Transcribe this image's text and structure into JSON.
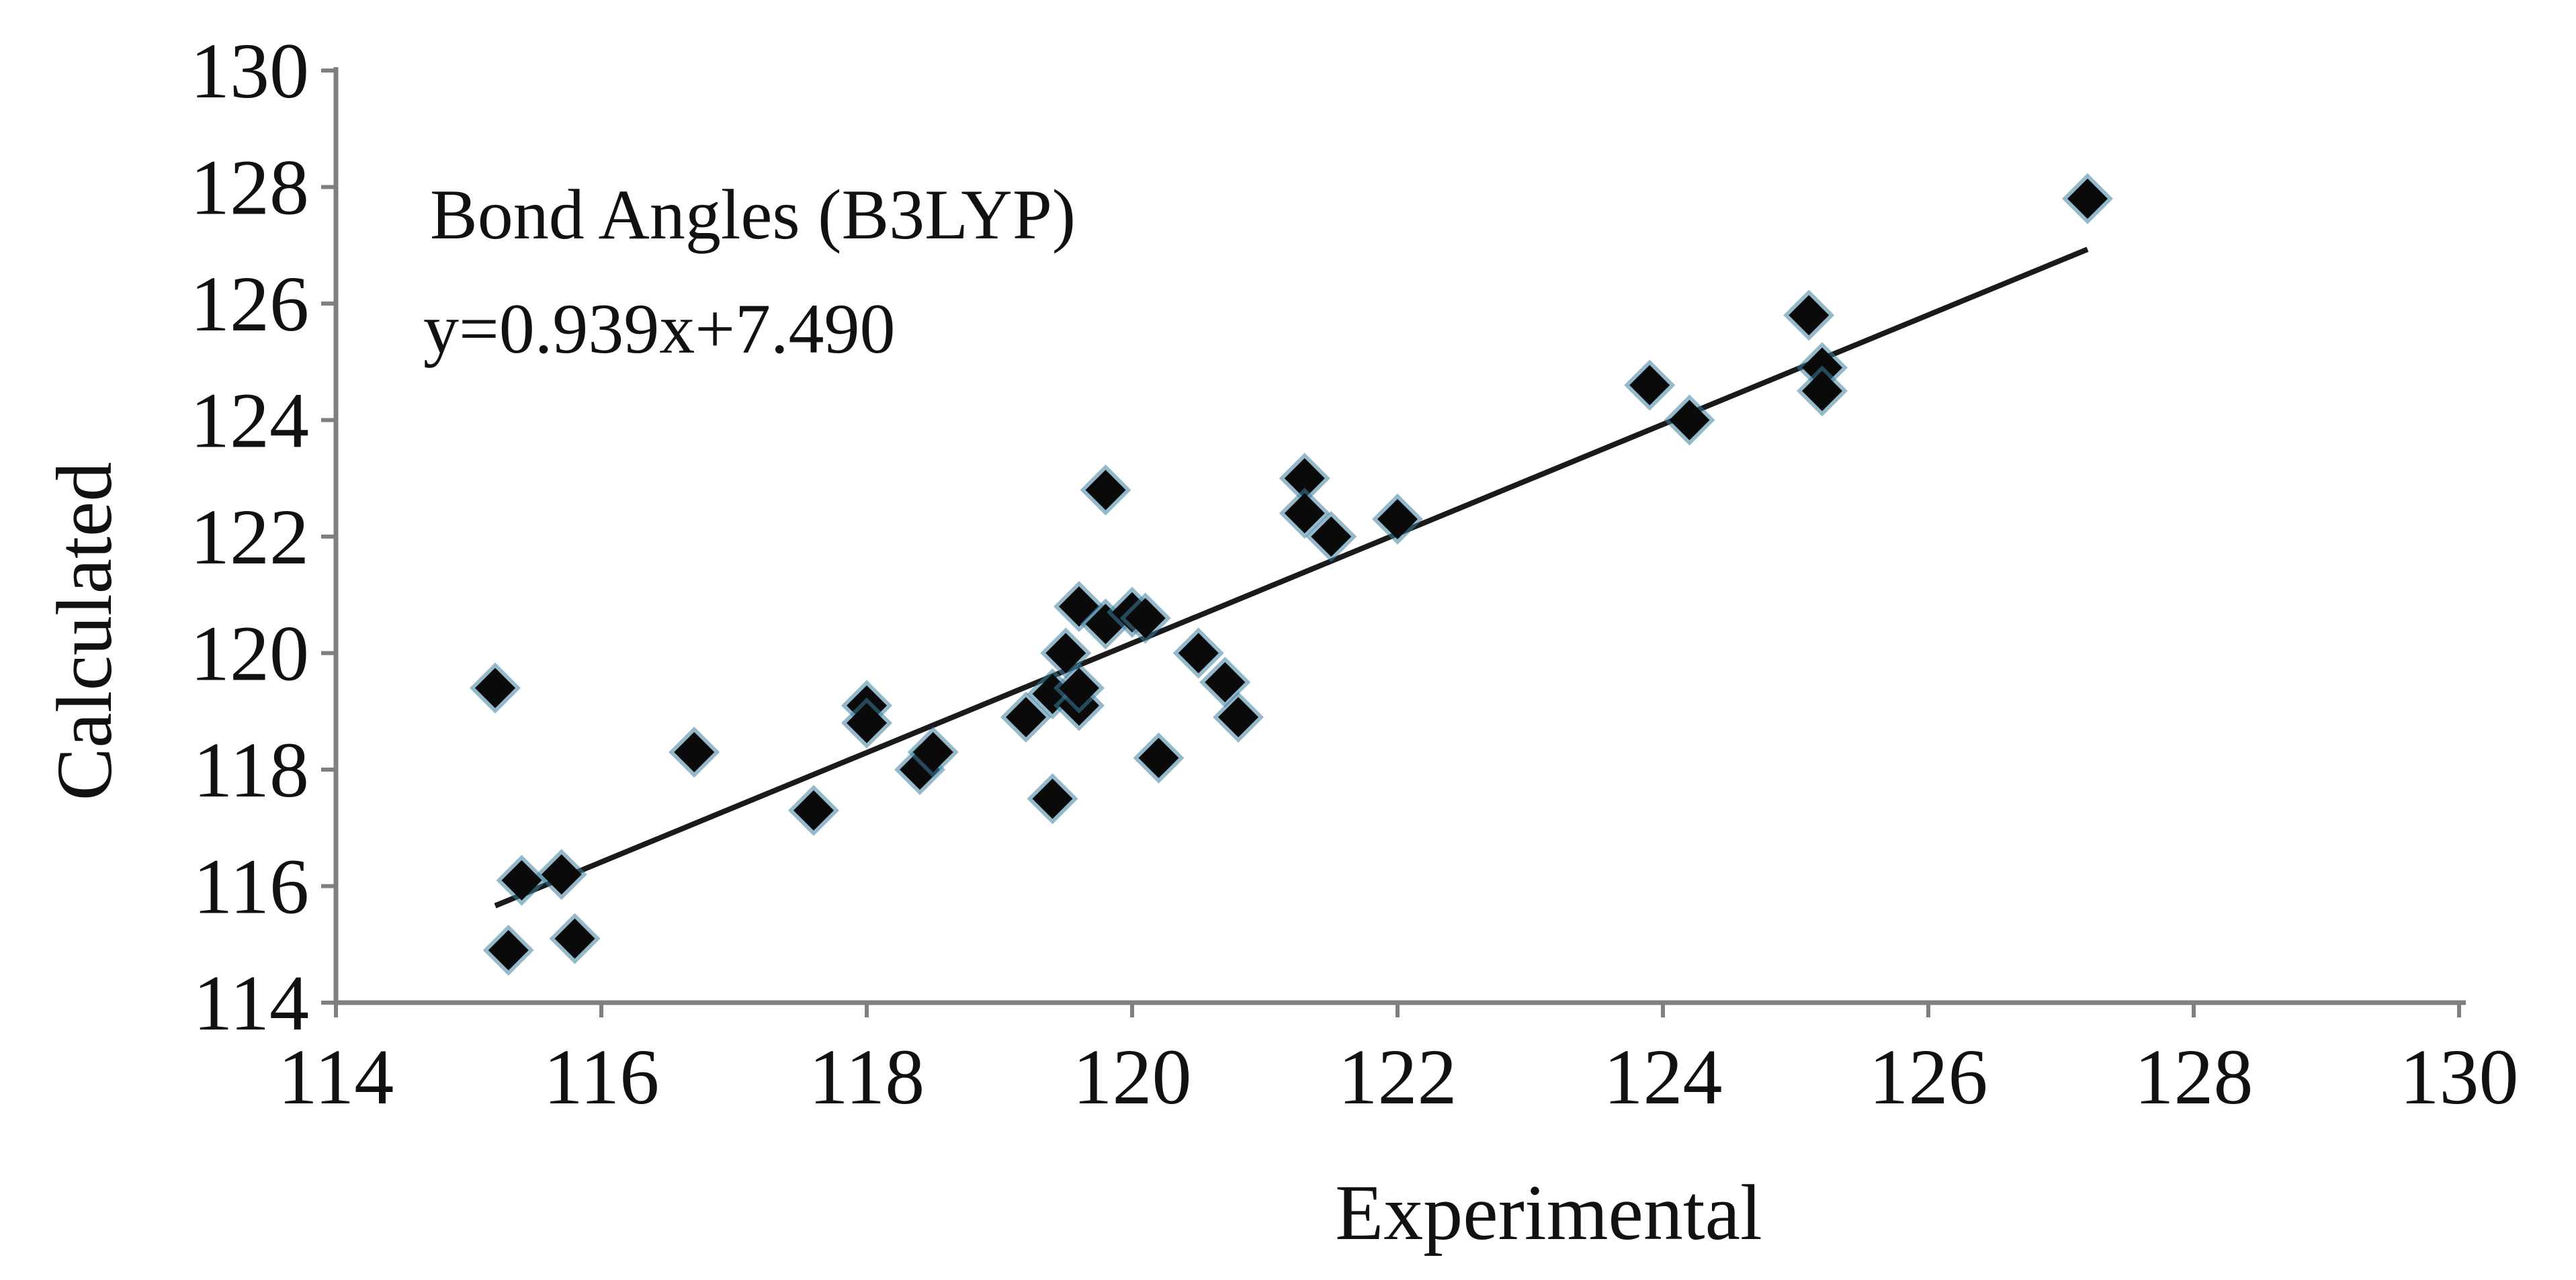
{
  "chart_data": {
    "type": "scatter",
    "title": "",
    "annotations": [
      "Bond Angles (B3LYP)",
      "y=0.939x+7.490"
    ],
    "xlabel": "Experimental",
    "ylabel": "Calculated",
    "xlim": [
      114,
      130
    ],
    "ylim": [
      114,
      130
    ],
    "xticks": [
      "114",
      "116",
      "118",
      "120",
      "122",
      "124",
      "126",
      "128",
      "130"
    ],
    "yticks": [
      "114",
      "116",
      "118",
      "120",
      "122",
      "124",
      "126",
      "128",
      "130"
    ],
    "grid": false,
    "legend": "none",
    "marker": "diamond",
    "colors": {
      "marker": "#0a0a0a",
      "marker_halo": "#3d7fa0",
      "trendline": "#1a1a1a",
      "axis": "#7f7f7f"
    },
    "trendline": {
      "slope": 0.939,
      "intercept": 7.49,
      "x_range": [
        115.2,
        127.2
      ]
    },
    "points": [
      {
        "x": 115.2,
        "y": 119.4
      },
      {
        "x": 115.3,
        "y": 114.9
      },
      {
        "x": 115.4,
        "y": 116.1
      },
      {
        "x": 115.7,
        "y": 116.2
      },
      {
        "x": 115.8,
        "y": 115.1
      },
      {
        "x": 116.7,
        "y": 118.3
      },
      {
        "x": 117.6,
        "y": 117.3
      },
      {
        "x": 118.0,
        "y": 119.1
      },
      {
        "x": 118.0,
        "y": 118.8
      },
      {
        "x": 118.4,
        "y": 118.0
      },
      {
        "x": 118.5,
        "y": 118.3
      },
      {
        "x": 119.2,
        "y": 118.9
      },
      {
        "x": 119.4,
        "y": 117.5
      },
      {
        "x": 119.4,
        "y": 119.3
      },
      {
        "x": 119.5,
        "y": 120.0
      },
      {
        "x": 119.6,
        "y": 119.1
      },
      {
        "x": 119.6,
        "y": 119.4
      },
      {
        "x": 119.6,
        "y": 120.8
      },
      {
        "x": 119.8,
        "y": 122.8
      },
      {
        "x": 119.8,
        "y": 120.5
      },
      {
        "x": 120.0,
        "y": 120.7
      },
      {
        "x": 120.1,
        "y": 120.6
      },
      {
        "x": 120.2,
        "y": 118.2
      },
      {
        "x": 120.5,
        "y": 120.0
      },
      {
        "x": 120.7,
        "y": 119.5
      },
      {
        "x": 120.8,
        "y": 118.9
      },
      {
        "x": 121.3,
        "y": 123.0
      },
      {
        "x": 121.3,
        "y": 122.4
      },
      {
        "x": 121.5,
        "y": 122.0
      },
      {
        "x": 122.0,
        "y": 122.3
      },
      {
        "x": 123.9,
        "y": 124.6
      },
      {
        "x": 124.2,
        "y": 124.0
      },
      {
        "x": 125.1,
        "y": 125.8
      },
      {
        "x": 125.2,
        "y": 124.9
      },
      {
        "x": 125.2,
        "y": 124.5
      },
      {
        "x": 127.2,
        "y": 127.8
      }
    ]
  }
}
